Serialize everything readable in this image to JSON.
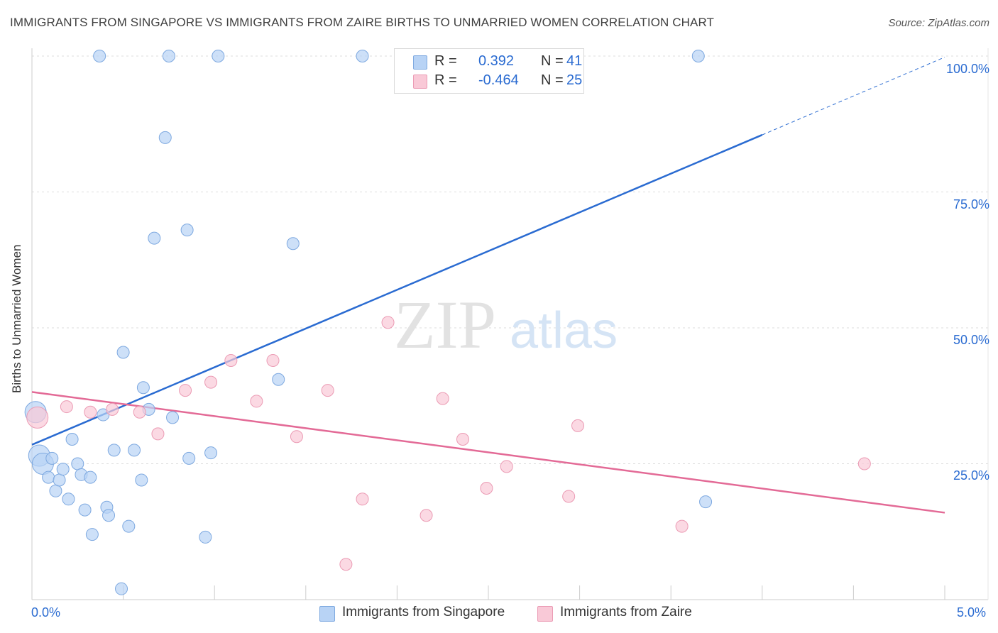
{
  "header": {
    "title": "IMMIGRANTS FROM SINGAPORE VS IMMIGRANTS FROM ZAIRE BIRTHS TO UNMARRIED WOMEN CORRELATION CHART",
    "source": "Source: ZipAtlas.com"
  },
  "watermark": {
    "zip": "ZIP",
    "atlas": "atlas"
  },
  "colors": {
    "singapore_fill": "#b8d3f5",
    "singapore_stroke": "#7ea9e0",
    "singapore_line": "#2a6bd1",
    "zaire_fill": "#f9c9d7",
    "zaire_stroke": "#eb9bb4",
    "zaire_line": "#e36a96",
    "tick_text": "#2a6bd1"
  },
  "legend": {
    "rows": [
      {
        "r_label": "R =",
        "r_value": " 0.392",
        "n_label": "N =",
        "n_value": "41"
      },
      {
        "r_label": "R =",
        "r_value": "-0.464",
        "n_label": "N =",
        "n_value": "25"
      }
    ]
  },
  "chart_data": {
    "type": "scatter",
    "title": "IMMIGRANTS FROM SINGAPORE VS IMMIGRANTS FROM ZAIRE BIRTHS TO UNMARRIED WOMEN CORRELATION CHART",
    "xlabel": "",
    "ylabel": "Births to Unmarried Women",
    "xlim": [
      0,
      5
    ],
    "ylim": [
      0,
      100
    ],
    "x_tick_labels": [
      "0.0%",
      "5.0%"
    ],
    "y_tick_values": [
      25,
      50,
      75,
      100
    ],
    "y_tick_labels": [
      "25.0%",
      "50.0%",
      "75.0%",
      "100.0%"
    ],
    "grid": true,
    "legend_position": "bottom",
    "series": [
      {
        "name": "Immigrants from Singapore",
        "r": 0.392,
        "n": 41,
        "trend": {
          "x0": 0,
          "y0": 28.5,
          "x1": 4.0,
          "y1": 85.5,
          "dashed_to_x": 5.0,
          "dashed_to_y": 99.8
        },
        "points": [
          {
            "x": 0.02,
            "y": 34.5,
            "big": true
          },
          {
            "x": 0.04,
            "y": 26.5,
            "big": true
          },
          {
            "x": 0.06,
            "y": 25.0,
            "big": true
          },
          {
            "x": 0.09,
            "y": 22.5
          },
          {
            "x": 0.11,
            "y": 26.0
          },
          {
            "x": 0.13,
            "y": 20.0
          },
          {
            "x": 0.15,
            "y": 22.0
          },
          {
            "x": 0.17,
            "y": 24.0
          },
          {
            "x": 0.2,
            "y": 18.5
          },
          {
            "x": 0.22,
            "y": 29.5
          },
          {
            "x": 0.25,
            "y": 25.0
          },
          {
            "x": 0.27,
            "y": 23.0
          },
          {
            "x": 0.29,
            "y": 16.5
          },
          {
            "x": 0.32,
            "y": 22.5
          },
          {
            "x": 0.33,
            "y": 12.0
          },
          {
            "x": 0.37,
            "y": 100.0
          },
          {
            "x": 0.39,
            "y": 34.0
          },
          {
            "x": 0.41,
            "y": 17.0
          },
          {
            "x": 0.42,
            "y": 15.5
          },
          {
            "x": 0.45,
            "y": 27.5
          },
          {
            "x": 0.49,
            "y": 2.0
          },
          {
            "x": 0.5,
            "y": 45.5
          },
          {
            "x": 0.53,
            "y": 13.5
          },
          {
            "x": 0.56,
            "y": 27.5
          },
          {
            "x": 0.6,
            "y": 22.0
          },
          {
            "x": 0.61,
            "y": 39.0
          },
          {
            "x": 0.64,
            "y": 35.0
          },
          {
            "x": 0.67,
            "y": 66.5
          },
          {
            "x": 0.73,
            "y": 85.0
          },
          {
            "x": 0.75,
            "y": 100.0
          },
          {
            "x": 0.77,
            "y": 33.5
          },
          {
            "x": 0.85,
            "y": 68.0
          },
          {
            "x": 0.86,
            "y": 26.0
          },
          {
            "x": 0.95,
            "y": 11.5
          },
          {
            "x": 0.98,
            "y": 27.0
          },
          {
            "x": 1.02,
            "y": 100.0
          },
          {
            "x": 1.35,
            "y": 40.5
          },
          {
            "x": 1.43,
            "y": 65.5
          },
          {
            "x": 1.81,
            "y": 100.0
          },
          {
            "x": 3.65,
            "y": 100.0
          },
          {
            "x": 3.69,
            "y": 18.0
          }
        ]
      },
      {
        "name": "Immigrants from Zaire",
        "r": -0.464,
        "n": 25,
        "trend": {
          "x0": 0,
          "y0": 38.2,
          "x1": 5.0,
          "y1": 16.0
        },
        "points": [
          {
            "x": 0.03,
            "y": 33.5,
            "big": true
          },
          {
            "x": 0.19,
            "y": 35.5
          },
          {
            "x": 0.32,
            "y": 34.5
          },
          {
            "x": 0.44,
            "y": 35.0
          },
          {
            "x": 0.59,
            "y": 34.5
          },
          {
            "x": 0.69,
            "y": 30.5
          },
          {
            "x": 0.84,
            "y": 38.5
          },
          {
            "x": 0.98,
            "y": 40.0
          },
          {
            "x": 1.09,
            "y": 44.0
          },
          {
            "x": 1.23,
            "y": 36.5
          },
          {
            "x": 1.32,
            "y": 44.0
          },
          {
            "x": 1.45,
            "y": 30.0
          },
          {
            "x": 1.62,
            "y": 38.5
          },
          {
            "x": 1.72,
            "y": 6.5
          },
          {
            "x": 1.81,
            "y": 18.5
          },
          {
            "x": 1.95,
            "y": 51.0
          },
          {
            "x": 2.16,
            "y": 15.5
          },
          {
            "x": 2.25,
            "y": 37.0
          },
          {
            "x": 2.36,
            "y": 29.5
          },
          {
            "x": 2.49,
            "y": 20.5
          },
          {
            "x": 2.6,
            "y": 24.5
          },
          {
            "x": 2.94,
            "y": 19.0
          },
          {
            "x": 2.99,
            "y": 32.0
          },
          {
            "x": 3.56,
            "y": 13.5
          },
          {
            "x": 4.56,
            "y": 25.0
          }
        ]
      }
    ]
  }
}
